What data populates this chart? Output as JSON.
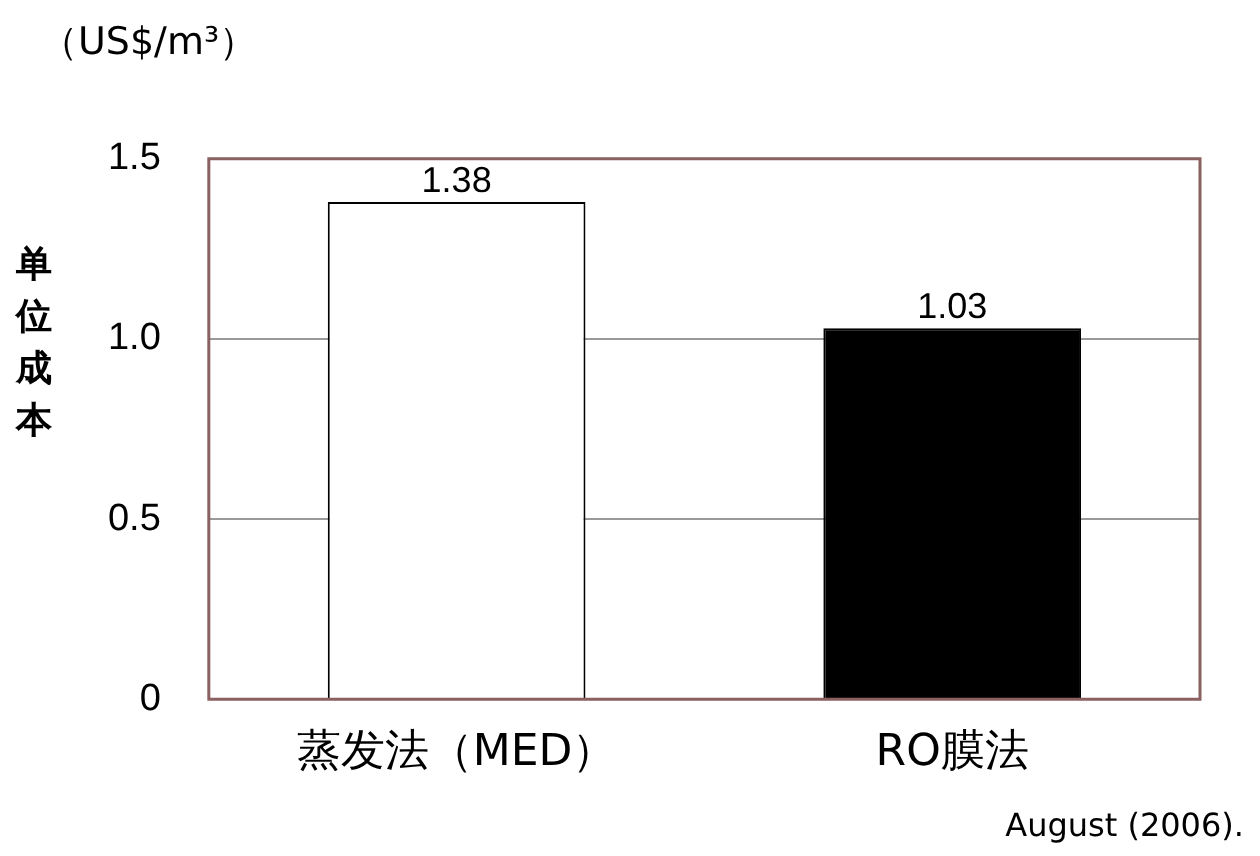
{
  "chart_data": {
    "type": "bar",
    "ylabel": "单位成本",
    "annotations": [
      "（US$/m³）",
      "August (2006)."
    ],
    "categories": [
      "蒸发法（MED）",
      "RO膜法"
    ],
    "values": [
      1.38,
      1.03
    ],
    "colors": [
      "#ffffff",
      "#000000"
    ],
    "ylim": [
      0,
      1.5
    ],
    "yticks": [
      0,
      {
        "value": 0.5,
        "label": "0.5"
      },
      {
        "value": 1,
        "label": "1.0"
      },
      1.5
    ],
    "grid": "y",
    "data_labels": true,
    "legend": false
  }
}
